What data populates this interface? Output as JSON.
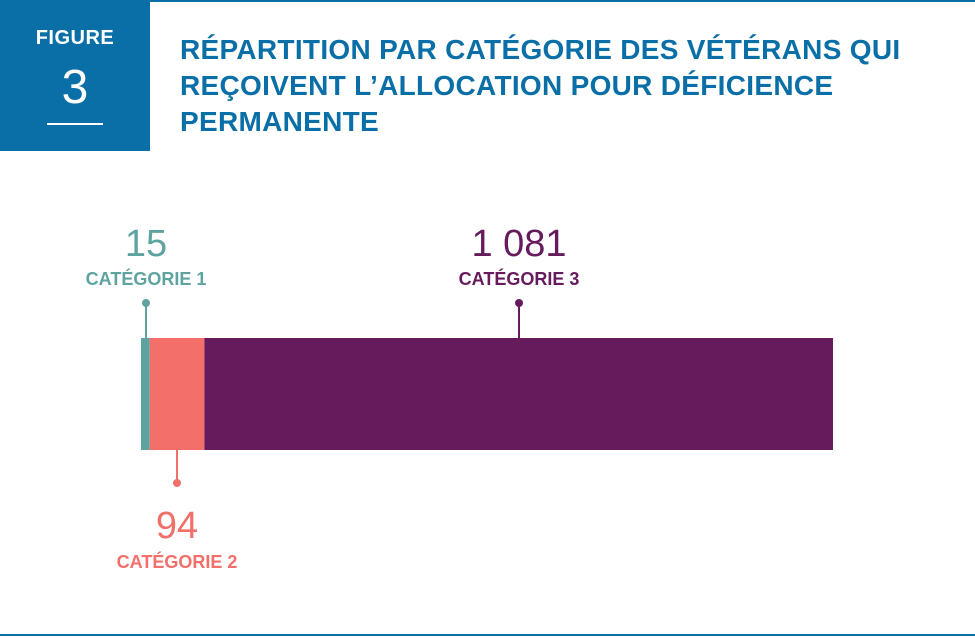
{
  "figure": {
    "label": "FIGURE",
    "number": "3"
  },
  "title": "RÉPARTITION PAR CATÉGORIE DES VÉTÉRANS QUI REÇOIVENT L’ALLOCATION POUR DÉFICIENCE PERMANENTE",
  "colors": {
    "brand_blue": "#0a6fa6",
    "category_1": "#5fa3a0",
    "category_2": "#f26f6a",
    "category_3": "#661b5d"
  },
  "chart_data": {
    "type": "bar",
    "orientation": "horizontal-stacked",
    "title": "RÉPARTITION PAR CATÉGORIE DES VÉTÉRANS QUI REÇOIVENT L’ALLOCATION POUR DÉFICIENCE PERMANENTE",
    "xlabel": "",
    "ylabel": "",
    "grid": false,
    "series": [
      {
        "name": "CATÉGORIE 1",
        "value": 15,
        "label": "15",
        "color": "#5fa3a0",
        "label_position": "above"
      },
      {
        "name": "CATÉGORIE 2",
        "value": 94,
        "label": "94",
        "color": "#f26f6a",
        "label_position": "below"
      },
      {
        "name": "CATÉGORIE 3",
        "value": 1081,
        "label": "1 081",
        "color": "#661b5d",
        "label_position": "above"
      }
    ]
  }
}
